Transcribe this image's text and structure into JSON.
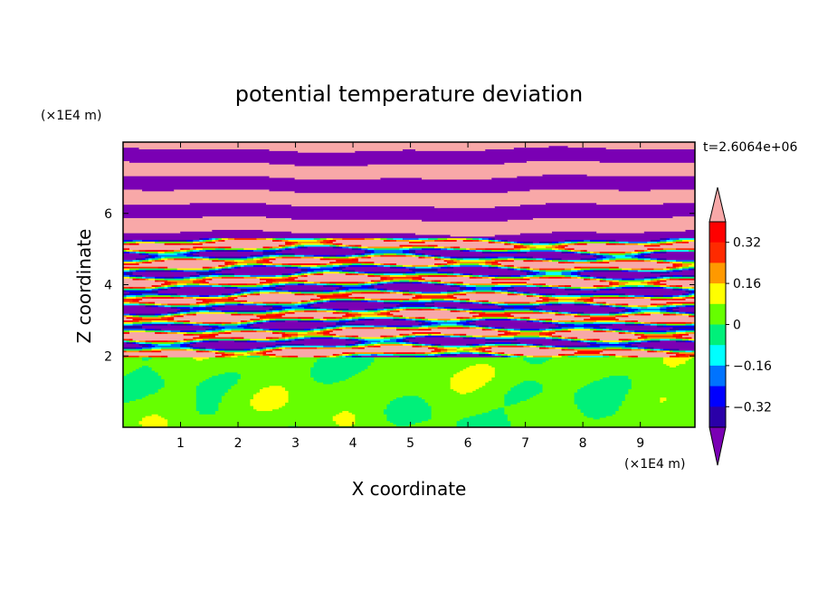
{
  "chart_data": {
    "type": "heatmap",
    "title": "potential temperature deviation",
    "xlabel": "X coordinate",
    "ylabel": "Z coordinate",
    "x_unit": "(×1E4 m)",
    "y_unit": "(×1E4 m)",
    "time_label": "t=2.6064e+06",
    "x_ticks": [
      "1",
      "2",
      "3",
      "4",
      "5",
      "6",
      "7",
      "8",
      "9"
    ],
    "y_ticks": [
      "2",
      "4",
      "6"
    ],
    "xlim": [
      0,
      9.95
    ],
    "ylim": [
      0,
      8.0
    ],
    "colorbar": {
      "labels": [
        "0.32",
        "0.16",
        "0",
        "−0.16",
        "−0.32"
      ],
      "label_values": [
        0.32,
        0.16,
        0,
        -0.16,
        -0.32
      ],
      "levels": [
        -0.4,
        -0.32,
        -0.24,
        -0.16,
        -0.08,
        0,
        0.08,
        0.16,
        0.24,
        0.32,
        0.4
      ],
      "colors": [
        "#7a00b4",
        "#2a00a8",
        "#0000ff",
        "#0073ff",
        "#00ffff",
        "#00f07a",
        "#66ff00",
        "#ffff00",
        "#ff9900",
        "#ff2a00",
        "#ff0000",
        "#f8a8a8"
      ],
      "under_color": "#7a00b4",
      "over_color": "#f8a8a8",
      "extend": "both"
    },
    "regions": [
      {
        "z_range": [
          0,
          2.0
        ],
        "description_value": "mostly 0 to 0.08 with patches of -0.08 to 0"
      },
      {
        "z_range": [
          2.0,
          5.5
        ],
        "description_value": "mixed layers spanning full range"
      },
      {
        "z_range": [
          5.5,
          8.0
        ],
        "description_value": "alternating bands below -0.4 and above 0.4"
      }
    ]
  }
}
